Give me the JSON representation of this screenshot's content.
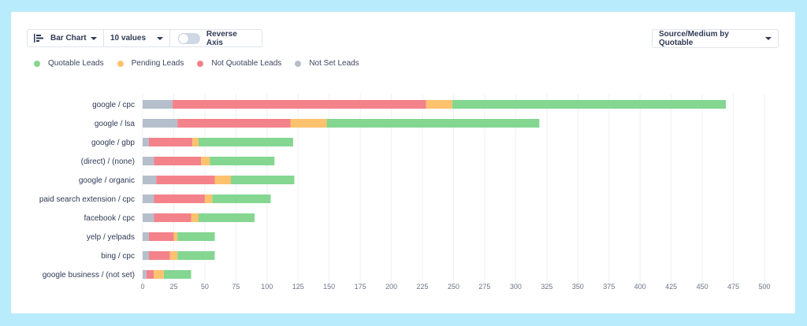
{
  "toolbar": {
    "chart_type_label": "Bar Chart",
    "values_label": "10 values",
    "reverse_axis_label": "Reverse Axis",
    "reverse_axis_on": false
  },
  "sort_select": {
    "label": "Source/Medium by Quotable"
  },
  "colors": {
    "background": "#b8ebfb",
    "quotable": "#84d691",
    "pending": "#fcc26e",
    "not_quotable": "#f4828a",
    "not_set": "#b5bfcb"
  },
  "chart_data": {
    "type": "bar",
    "orientation": "horizontal",
    "stacked": true,
    "categories": [
      "google / cpc",
      "google / lsa",
      "google / gbp",
      "(direct) / (none)",
      "google / organic",
      "paid search extension / cpc",
      "facebook / cpc",
      "yelp / yelpads",
      "bing / cpc",
      "google business / (not set)"
    ],
    "series": [
      {
        "name": "Not Set Leads",
        "color": "#b5bfcb",
        "values": [
          24,
          28,
          5,
          9,
          11,
          9,
          9,
          5,
          5,
          3
        ]
      },
      {
        "name": "Not Quotable Leads",
        "color": "#f4828a",
        "values": [
          204,
          91,
          35,
          38,
          47,
          41,
          30,
          20,
          17,
          6
        ]
      },
      {
        "name": "Pending Leads",
        "color": "#fcc26e",
        "values": [
          21,
          29,
          5,
          7,
          13,
          6,
          6,
          3,
          6,
          8
        ]
      },
      {
        "name": "Quotable Leads",
        "color": "#84d691",
        "values": [
          220,
          171,
          76,
          52,
          51,
          47,
          45,
          30,
          30,
          22
        ]
      }
    ],
    "legend_order": [
      "Quotable Leads",
      "Pending Leads",
      "Not Quotable Leads",
      "Not Set Leads"
    ],
    "legend_position": "top-left",
    "xlim": [
      0,
      500
    ],
    "x_ticks": [
      0,
      25,
      50,
      75,
      100,
      125,
      150,
      175,
      200,
      225,
      250,
      275,
      300,
      325,
      350,
      375,
      400,
      425,
      450,
      475,
      500
    ],
    "grid": "vertical"
  }
}
